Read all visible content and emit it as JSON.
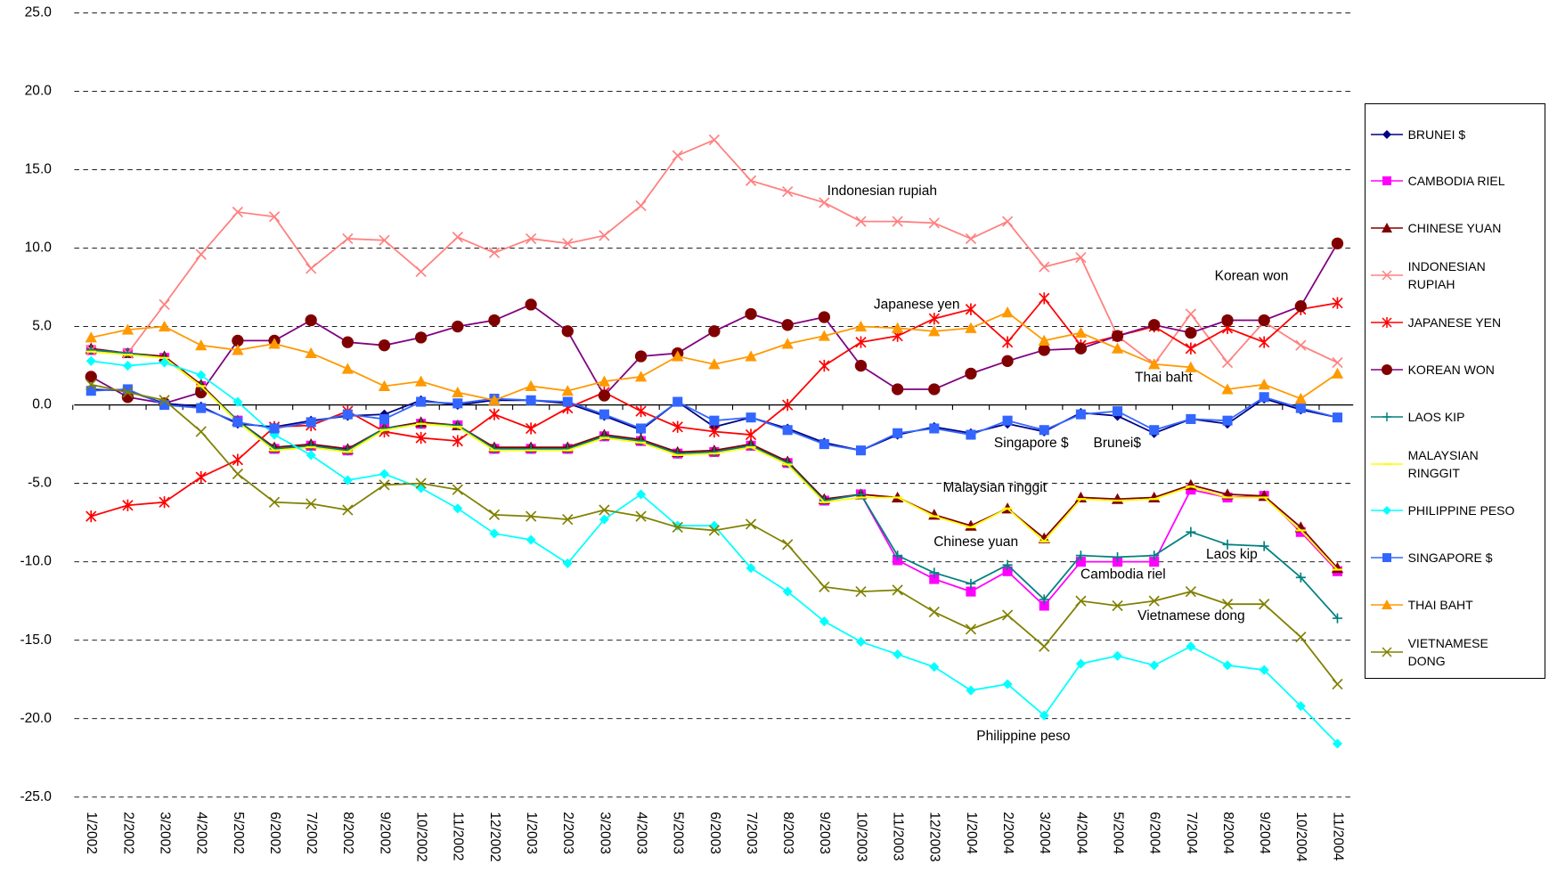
{
  "chart_data": {
    "type": "line",
    "categories": [
      "1/2002",
      "2/2002",
      "3/2002",
      "4/2002",
      "5/2002",
      "6/2002",
      "7/2002",
      "8/2002",
      "9/2002",
      "10/2002",
      "11/2002",
      "12/2002",
      "1/2003",
      "2/2003",
      "3/2003",
      "4/2003",
      "5/2003",
      "6/2003",
      "7/2003",
      "8/2003",
      "9/2003",
      "10/2003",
      "11/2003",
      "12/2003",
      "1/2004",
      "2/2004",
      "3/2004",
      "4/2004",
      "5/2004",
      "6/2004",
      "7/2004",
      "8/2004",
      "9/2004",
      "10/2004",
      "11/2004"
    ],
    "ylim": [
      -25,
      25
    ],
    "yticks": [
      {
        "value": -25,
        "label": "-25.0"
      },
      {
        "value": -20,
        "label": "-20.0"
      },
      {
        "value": -15,
        "label": "-15.0"
      },
      {
        "value": -10,
        "label": "-10.0"
      },
      {
        "value": -5,
        "label": "-5.0"
      },
      {
        "value": 0,
        "label": "0.0"
      },
      {
        "value": 5,
        "label": "5.0"
      },
      {
        "value": 10,
        "label": "10.0"
      },
      {
        "value": 15,
        "label": "15.0"
      },
      {
        "value": 20,
        "label": "20.0"
      },
      {
        "value": 25,
        "label": "25.0"
      }
    ],
    "grid": true,
    "legend": "right",
    "series": [
      {
        "name": "BRUNEI $",
        "color": "#000080",
        "marker": "diamond",
        "values": [
          1.0,
          0.9,
          0.1,
          -0.1,
          -1.2,
          -1.4,
          -1.0,
          -0.7,
          -0.6,
          0.3,
          0.0,
          0.3,
          0.3,
          0.1,
          -0.7,
          -1.6,
          0.2,
          -1.4,
          -0.8,
          -1.5,
          -2.4,
          -2.9,
          -1.9,
          -1.4,
          -1.8,
          -1.2,
          -1.7,
          -0.5,
          -0.7,
          -1.8,
          -0.9,
          -1.2,
          0.4,
          -0.3,
          -0.8
        ]
      },
      {
        "name": "CAMBODIA RIEL",
        "color": "#ff00ff",
        "marker": "square",
        "values": [
          3.5,
          3.3,
          3.0,
          1.2,
          -1.0,
          -2.8,
          -2.6,
          -2.9,
          -1.5,
          -1.2,
          -1.3,
          -2.8,
          -2.8,
          -2.8,
          -2.0,
          -2.3,
          -3.1,
          -3.0,
          -2.6,
          -3.7,
          -6.1,
          -5.7,
          -9.9,
          -11.1,
          -11.9,
          -10.6,
          -12.8,
          -10.0,
          -10.0,
          -10.0,
          -5.4,
          -5.9,
          -5.8,
          -8.1,
          -10.6
        ]
      },
      {
        "name": "CHINESE YUAN",
        "color": "#800000",
        "marker": "triangle",
        "values": [
          3.6,
          3.3,
          3.1,
          1.3,
          -1.0,
          -2.7,
          -2.5,
          -2.8,
          -1.5,
          -1.1,
          -1.3,
          -2.7,
          -2.7,
          -2.7,
          -1.9,
          -2.2,
          -3.0,
          -2.9,
          -2.5,
          -3.6,
          -6.0,
          -5.7,
          -5.9,
          -7.0,
          -7.7,
          -6.6,
          -8.5,
          -5.9,
          -6.0,
          -5.9,
          -5.1,
          -5.7,
          -5.8,
          -7.8,
          -10.4
        ]
      },
      {
        "name": "INDONESIAN RUPIAH",
        "color": "#ff8080",
        "marker": "x",
        "values": [
          3.5,
          3.3,
          6.4,
          9.6,
          12.3,
          12.0,
          8.7,
          10.6,
          10.5,
          8.5,
          10.7,
          9.7,
          10.6,
          10.3,
          10.8,
          12.7,
          15.9,
          16.9,
          14.3,
          13.6,
          12.9,
          11.7,
          11.7,
          11.6,
          10.6,
          11.7,
          8.8,
          9.4,
          4.4,
          2.6,
          5.8,
          2.7,
          5.3,
          3.8,
          2.7
        ]
      },
      {
        "name": "JAPANESE YEN",
        "color": "#ff0000",
        "marker": "star",
        "values": [
          -7.1,
          -6.4,
          -6.2,
          -4.6,
          -3.5,
          -1.4,
          -1.3,
          -0.4,
          -1.7,
          -2.1,
          -2.3,
          -0.6,
          -1.5,
          -0.2,
          0.8,
          -0.4,
          -1.4,
          -1.7,
          -1.9,
          0.0,
          2.5,
          4.0,
          4.4,
          5.5,
          6.1,
          4.0,
          6.8,
          3.8,
          4.4,
          5.0,
          3.6,
          4.9,
          4.0,
          6.1,
          6.5
        ]
      },
      {
        "name": "KOREAN WON",
        "color": "#800080",
        "marker": "circle",
        "values": [
          1.8,
          0.5,
          0.1,
          0.8,
          4.1,
          4.1,
          5.4,
          4.0,
          3.8,
          4.3,
          5.0,
          5.4,
          6.4,
          4.7,
          0.6,
          3.1,
          3.3,
          4.7,
          5.8,
          5.1,
          5.6,
          2.5,
          1.0,
          1.0,
          2.0,
          2.8,
          3.5,
          3.6,
          4.4,
          5.1,
          4.6,
          5.4,
          5.4,
          6.3,
          10.3
        ]
      },
      {
        "name": "LAOS KIP",
        "color": "#008080",
        "marker": "plus",
        "values": [
          3.5,
          3.3,
          3.0,
          1.2,
          -1.0,
          -2.8,
          -2.6,
          -2.9,
          -1.5,
          -1.2,
          -1.3,
          -2.8,
          -2.8,
          -2.8,
          -2.0,
          -2.3,
          -3.1,
          -3.0,
          -2.6,
          -3.7,
          -6.1,
          -5.7,
          -9.6,
          -10.7,
          -11.4,
          -10.2,
          -12.4,
          -9.6,
          -9.7,
          -9.6,
          -8.1,
          -8.9,
          -9.0,
          -11.0,
          -13.6
        ]
      },
      {
        "name": "MALAYSIAN RINGGIT",
        "color": "#ffff00",
        "marker": "dash",
        "values": [
          3.4,
          3.2,
          3.0,
          1.2,
          -1.1,
          -2.9,
          -2.7,
          -3.0,
          -1.6,
          -1.2,
          -1.4,
          -2.9,
          -2.9,
          -2.9,
          -2.1,
          -2.4,
          -3.2,
          -3.1,
          -2.7,
          -3.8,
          -6.2,
          -5.9,
          -5.9,
          -7.1,
          -7.8,
          -6.6,
          -8.7,
          -6.0,
          -6.1,
          -6.0,
          -5.2,
          -5.9,
          -5.9,
          -8.0,
          -10.5
        ]
      },
      {
        "name": "PHILIPPINE PESO",
        "color": "#00ffff",
        "marker": "diamond",
        "values": [
          2.8,
          2.5,
          2.7,
          1.9,
          0.2,
          -1.9,
          -3.2,
          -4.8,
          -4.4,
          -5.3,
          -6.6,
          -8.2,
          -8.6,
          -10.1,
          -7.3,
          -5.7,
          -7.7,
          -7.7,
          -10.4,
          -11.9,
          -13.8,
          -15.1,
          -15.9,
          -16.7,
          -18.2,
          -17.8,
          -19.8,
          -16.5,
          -16.0,
          -16.6,
          -15.4,
          -16.6,
          -16.9,
          -19.2,
          -21.6
        ]
      },
      {
        "name": "SINGAPORE $",
        "color": "#3366ff",
        "marker": "square",
        "values": [
          0.9,
          1.0,
          0.0,
          -0.2,
          -1.1,
          -1.5,
          -1.1,
          -0.6,
          -0.9,
          0.2,
          0.1,
          0.4,
          0.3,
          0.2,
          -0.6,
          -1.5,
          0.2,
          -1.0,
          -0.8,
          -1.6,
          -2.5,
          -2.9,
          -1.8,
          -1.5,
          -1.9,
          -1.0,
          -1.6,
          -0.6,
          -0.4,
          -1.6,
          -0.9,
          -1.0,
          0.5,
          -0.2,
          -0.8
        ]
      },
      {
        "name": "THAI BAHT",
        "color": "#ff9900",
        "marker": "triangle",
        "values": [
          4.3,
          4.8,
          5.0,
          3.8,
          3.5,
          3.9,
          3.3,
          2.3,
          1.2,
          1.5,
          0.8,
          0.3,
          1.2,
          0.9,
          1.5,
          1.8,
          3.1,
          2.6,
          3.1,
          3.9,
          4.4,
          5.0,
          4.9,
          4.7,
          4.9,
          5.9,
          4.1,
          4.6,
          3.6,
          2.6,
          2.4,
          1.0,
          1.3,
          0.4,
          2.0
        ]
      },
      {
        "name": "VIETNAMESE DONG",
        "color": "#808000",
        "marker": "x",
        "values": [
          1.3,
          0.8,
          0.3,
          -1.7,
          -4.4,
          -6.2,
          -6.3,
          -6.7,
          -5.1,
          -5.0,
          -5.4,
          -7.0,
          -7.1,
          -7.3,
          -6.7,
          -7.1,
          -7.8,
          -8.0,
          -7.6,
          -8.9,
          -11.6,
          -11.9,
          -11.8,
          -13.2,
          -14.3,
          -13.4,
          -15.4,
          -12.5,
          -12.8,
          -12.5,
          -11.9,
          -12.7,
          -12.7,
          -14.8,
          -17.8
        ]
      }
    ],
    "annotations": [
      "Indonesian rupiah",
      "Korean won",
      "Japanese yen",
      "Thai baht",
      "Singapore $",
      "Brunei$",
      "Malaysian ringgit",
      "Chinese yuan",
      "Laos kip",
      "Cambodia riel",
      "Vietnamese dong",
      "Philippine peso"
    ]
  }
}
